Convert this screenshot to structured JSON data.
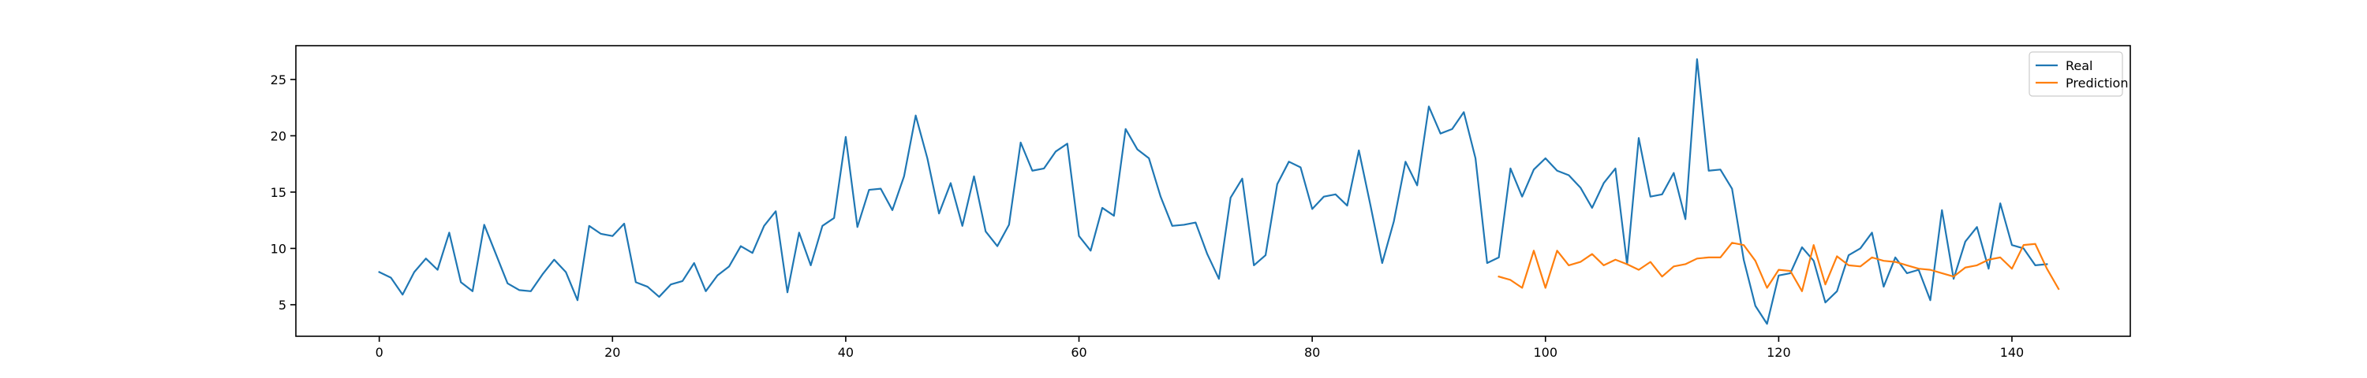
{
  "chart_data": {
    "type": "line",
    "title": "",
    "xlabel": "",
    "ylabel": "",
    "xlim": [
      -7.15,
      150.15
    ],
    "ylim": [
      2.2,
      28.0
    ],
    "x_ticks": [
      0,
      20,
      40,
      60,
      80,
      100,
      120,
      140
    ],
    "x_tick_labels": [
      "0",
      "20",
      "40",
      "60",
      "80",
      "100",
      "120",
      "140"
    ],
    "y_ticks": [
      5,
      10,
      15,
      20,
      25
    ],
    "y_tick_labels": [
      "5",
      "10",
      "15",
      "20",
      "25"
    ],
    "grid": false,
    "legend_position": "top-right",
    "series": [
      {
        "name": "Real",
        "color": "#1f77b4",
        "x_start": 0,
        "values": [
          7.9,
          7.4,
          5.9,
          7.9,
          9.1,
          8.1,
          11.4,
          7.0,
          6.2,
          12.1,
          9.5,
          6.9,
          6.3,
          6.2,
          7.7,
          9.0,
          7.9,
          5.4,
          12.0,
          11.3,
          11.1,
          12.2,
          7.0,
          6.6,
          5.7,
          6.8,
          7.1,
          8.7,
          6.2,
          7.6,
          8.4,
          10.2,
          9.6,
          12.0,
          13.3,
          6.1,
          11.4,
          8.5,
          12.0,
          12.7,
          19.9,
          11.9,
          15.2,
          15.3,
          13.4,
          16.4,
          21.8,
          18.0,
          13.1,
          15.8,
          12.0,
          16.4,
          11.5,
          10.2,
          12.1,
          19.4,
          16.9,
          17.1,
          18.6,
          19.3,
          11.1,
          9.8,
          13.6,
          12.9,
          20.6,
          18.8,
          18.0,
          14.6,
          12.0,
          12.1,
          12.3,
          9.5,
          7.3,
          14.5,
          16.2,
          8.5,
          9.4,
          15.7,
          17.7,
          17.2,
          13.5,
          14.6,
          14.8,
          13.8,
          18.7,
          13.8,
          8.7,
          12.4,
          17.7,
          15.6,
          22.6,
          20.2,
          20.6,
          22.1,
          18.0,
          8.7,
          9.2,
          17.1,
          14.6,
          17.0,
          18.0,
          16.9,
          16.5,
          15.4,
          13.6,
          15.8,
          17.1,
          8.6,
          19.8,
          14.6,
          14.8,
          16.7,
          12.6,
          26.8,
          16.9,
          17.0,
          15.3,
          9.0,
          4.9,
          3.3,
          7.6,
          7.8,
          10.1,
          8.9,
          5.2,
          6.2,
          9.4,
          10.0,
          11.4,
          6.6,
          9.2,
          7.8,
          8.1,
          5.4,
          13.4,
          7.3,
          10.6,
          11.9,
          8.2,
          14.0,
          10.3,
          10.0,
          8.5,
          8.6
        ]
      },
      {
        "name": "Prediction",
        "color": "#ff7f0e",
        "x_start": 96,
        "values": [
          7.5,
          7.2,
          6.5,
          9.8,
          6.5,
          9.8,
          8.5,
          8.8,
          9.5,
          8.5,
          9.0,
          8.6,
          8.1,
          8.8,
          7.5,
          8.4,
          8.6,
          9.1,
          9.2,
          9.2,
          10.5,
          10.3,
          8.9,
          6.5,
          8.1,
          8.0,
          6.2,
          10.3,
          6.8,
          9.3,
          8.5,
          8.4,
          9.2,
          8.9,
          8.8,
          8.5,
          8.2,
          8.1,
          7.8,
          7.5,
          8.3,
          8.5,
          9.0,
          9.2,
          8.2,
          10.3,
          10.4,
          8.2,
          6.4
        ]
      }
    ]
  }
}
